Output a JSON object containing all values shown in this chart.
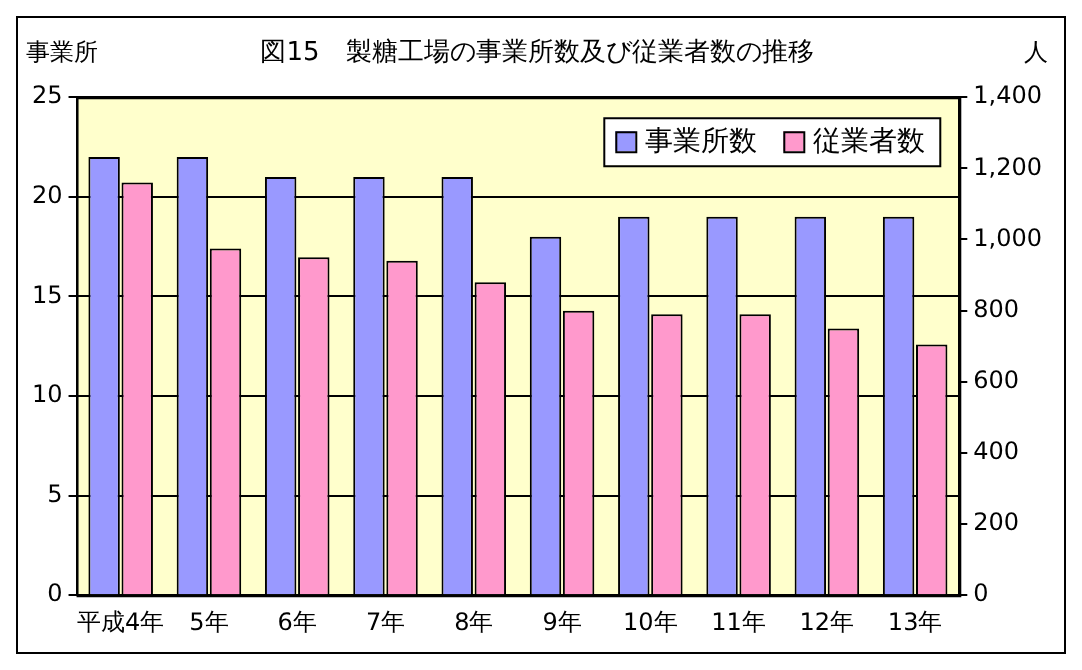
{
  "chart_data": {
    "type": "bar",
    "title": "図15　製糖工場の事業所数及び従業者数の推移",
    "ylabel": "事業所",
    "y2label": "人",
    "categories": [
      "平成4年",
      "5年",
      "6年",
      "7年",
      "8年",
      "9年",
      "10年",
      "11年",
      "12年",
      "13年"
    ],
    "series": [
      {
        "name": "事業所数",
        "color": "#9999ff",
        "values": [
          22,
          22,
          21,
          21,
          21,
          18,
          19,
          19,
          19,
          19
        ]
      },
      {
        "name": "従業者数",
        "color": "#ff99cc",
        "axis": "y2",
        "values": [
          1160,
          975,
          950,
          940,
          880,
          800,
          790,
          790,
          750,
          705
        ]
      }
    ],
    "ylim": [
      0,
      25
    ],
    "yticks": [
      0,
      5,
      10,
      15,
      20,
      25
    ],
    "y2lim": [
      0,
      1400
    ],
    "y2ticks": [
      0,
      {
        "value": 200,
        "label": "200"
      },
      {
        "value": 400,
        "label": "400"
      },
      {
        "value": 600,
        "label": "600"
      },
      {
        "value": 800,
        "label": "800"
      },
      {
        "value": 1000,
        "label": "1,000"
      },
      {
        "value": 1200,
        "label": "1,200"
      },
      {
        "value": 1400,
        "label": "1,400"
      }
    ],
    "grid": "y",
    "legend": "top right"
  }
}
